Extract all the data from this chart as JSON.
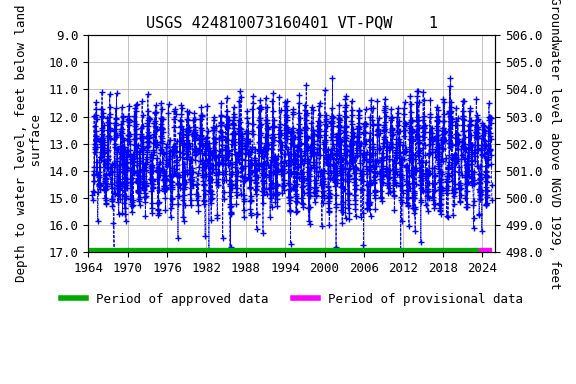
{
  "title": "USGS 424810073160401 VT-PQW    1",
  "ylabel_left": "Depth to water level, feet below land\n surface",
  "ylabel_right": "Groundwater level above NGVD 1929, feet",
  "ylim_left": [
    17.0,
    9.0
  ],
  "ylim_right": [
    498.0,
    506.0
  ],
  "xlim": [
    1964,
    2026
  ],
  "yticks_left": [
    9.0,
    10.0,
    11.0,
    12.0,
    13.0,
    14.0,
    15.0,
    16.0,
    17.0
  ],
  "yticks_right": [
    506.0,
    505.0,
    504.0,
    503.0,
    502.0,
    501.0,
    500.0,
    499.0,
    498.0
  ],
  "xticks": [
    1964,
    1970,
    1976,
    1982,
    1988,
    1994,
    2000,
    2006,
    2012,
    2018,
    2024
  ],
  "data_color": "#0000FF",
  "approved_color": "#00AA00",
  "provisional_color": "#FF00FF",
  "approved_start": 1964,
  "approved_end": 2023.5,
  "provisional_start": 2023.5,
  "provisional_end": 2025.5,
  "bar_y": 17.0,
  "title_fontsize": 11,
  "axis_fontsize": 9,
  "tick_fontsize": 9,
  "legend_fontsize": 9,
  "marker": "+",
  "markersize": 4,
  "linestyle": "--",
  "linewidth": 0.6,
  "background_color": "#ffffff",
  "grid_color": "#aaaaaa",
  "seed": 42,
  "num_points": 2500,
  "mean_depth": 13.5,
  "x_start": 1964.5,
  "x_end": 2025.5
}
